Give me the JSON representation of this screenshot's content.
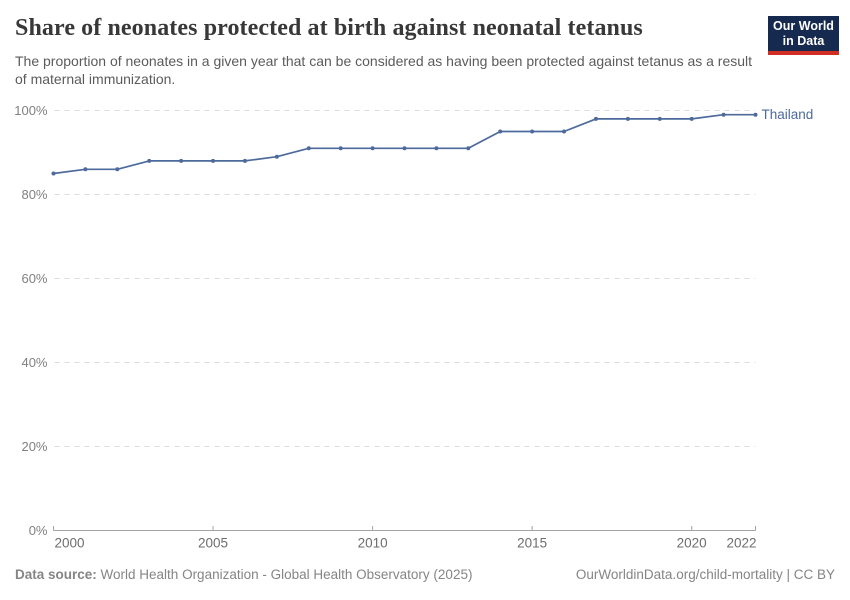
{
  "header": {
    "title": "Share of neonates protected at birth against neonatal tetanus",
    "subtitle": "The proportion of neonates in a given year that can be considered as having been protected against tetanus as a result of maternal immunization.",
    "logo_line1": "Our World",
    "logo_line2": "in Data"
  },
  "chart_data": {
    "type": "line",
    "title": "Share of neonates protected at birth against neonatal tetanus",
    "xlabel": "",
    "ylabel": "",
    "xlim": [
      2000,
      2022
    ],
    "ylim": [
      0,
      100
    ],
    "x_ticks": [
      2000,
      2005,
      2010,
      2015,
      2020,
      2022
    ],
    "y_ticks": [
      0,
      20,
      40,
      60,
      80,
      100
    ],
    "y_tick_suffix": "%",
    "grid": "horizontal-dashed",
    "legend_position": "end-of-line-label",
    "series": [
      {
        "name": "Thailand",
        "color": "#4C6A9C",
        "x": [
          2000,
          2001,
          2002,
          2003,
          2004,
          2005,
          2006,
          2007,
          2008,
          2009,
          2010,
          2011,
          2012,
          2013,
          2014,
          2015,
          2016,
          2017,
          2018,
          2019,
          2020,
          2021,
          2022
        ],
        "values": [
          85,
          86,
          86,
          88,
          88,
          88,
          88,
          89,
          91,
          91,
          91,
          91,
          91,
          91,
          95,
          95,
          95,
          98,
          98,
          98,
          98,
          99,
          99
        ]
      }
    ]
  },
  "footer": {
    "source_label": "Data source:",
    "source_text": " World Health Organization - Global Health Observatory (2025)",
    "rights_text": "OurWorldinData.org/child-mortality | CC BY"
  },
  "colors": {
    "line": "#4C6A9C",
    "gridline": "#dcdcdc",
    "axis": "#a3a3a3",
    "y_tick_label": "#818181",
    "x_tick_label": "#6d6d6d",
    "title": "#383838",
    "subtitle": "#5b5b5b",
    "footer": "#858585",
    "logo_bg": "#16294f",
    "logo_stripe": "#cf2e22"
  }
}
